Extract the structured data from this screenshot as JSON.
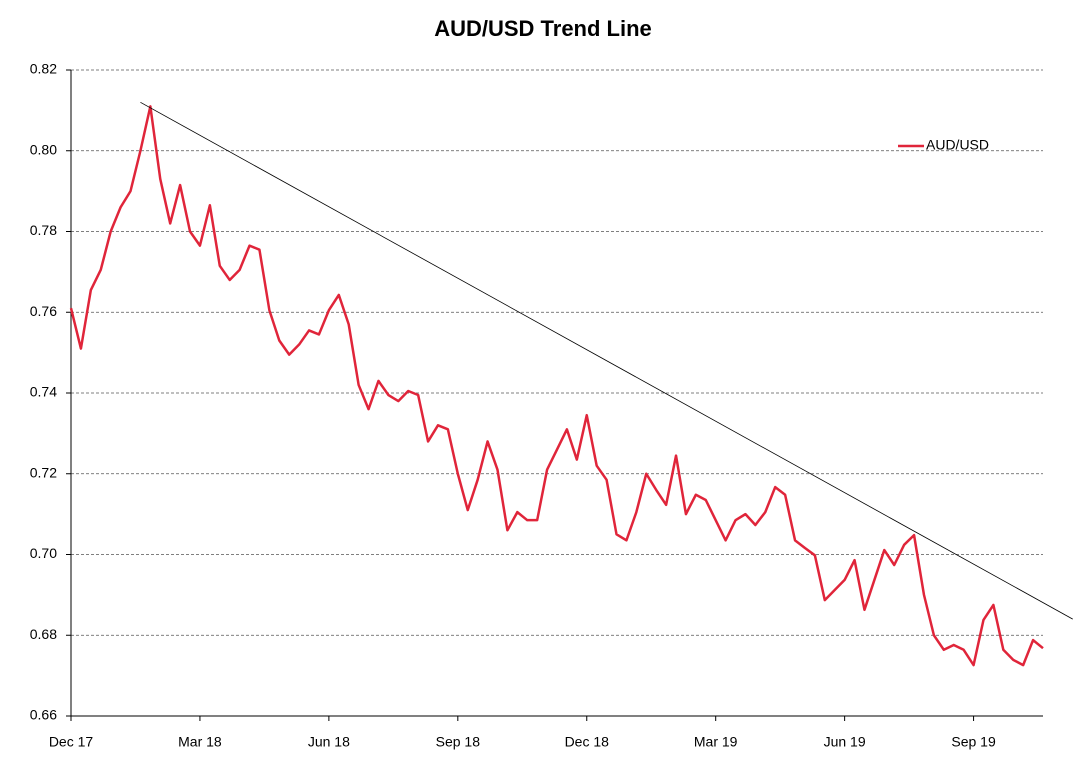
{
  "chart_data": {
    "type": "line",
    "title": "AUD/USD Trend Line",
    "categories": [
      "Dec 17",
      null,
      null,
      null,
      null,
      null,
      null,
      null,
      null,
      null,
      null,
      null,
      null,
      "Mar 18",
      null,
      null,
      null,
      null,
      null,
      null,
      null,
      null,
      null,
      null,
      null,
      null,
      "Jun 18",
      null,
      null,
      null,
      null,
      null,
      null,
      null,
      null,
      null,
      null,
      null,
      null,
      "Sep 18",
      null,
      null,
      null,
      null,
      null,
      null,
      null,
      null,
      null,
      null,
      null,
      null,
      "Dec 18",
      null,
      null,
      null,
      null,
      null,
      null,
      null,
      null,
      null,
      null,
      null,
      null,
      "Mar 19",
      null,
      null,
      null,
      null,
      null,
      null,
      null,
      null,
      null,
      null,
      null,
      null,
      "Jun 19",
      null,
      null,
      null,
      null,
      null,
      null,
      null,
      null,
      null,
      null,
      null,
      null,
      "Sep 19",
      null,
      null,
      null,
      null,
      null,
      null,
      null
    ],
    "series": [
      {
        "name": "AUD/USD",
        "color": "#e0253a",
        "values": [
          0.761,
          0.751,
          0.7655,
          0.7705,
          0.78,
          0.786,
          0.79,
          0.8,
          0.811,
          0.793,
          0.782,
          0.7915,
          0.78,
          0.7765,
          0.7865,
          0.7715,
          0.768,
          0.7705,
          0.7765,
          0.7755,
          0.7605,
          0.753,
          0.7495,
          0.752,
          0.7555,
          0.7545,
          0.7605,
          0.7643,
          0.757,
          0.742,
          0.736,
          0.743,
          0.7395,
          0.738,
          0.7405,
          0.7395,
          0.728,
          0.732,
          0.731,
          0.72,
          0.711,
          0.7185,
          0.728,
          0.721,
          0.706,
          0.7105,
          0.7085,
          0.7085,
          0.721,
          0.726,
          0.731,
          0.7235,
          0.7345,
          0.722,
          0.7185,
          0.705,
          0.7035,
          0.7105,
          0.72,
          0.716,
          0.7123,
          0.7245,
          0.71,
          0.7148,
          0.7135,
          0.7085,
          0.7035,
          0.7085,
          0.71,
          0.7073,
          0.7105,
          0.7167,
          0.7148,
          0.7035,
          0.7016,
          0.6998,
          0.6887,
          0.6912,
          0.6937,
          0.6986,
          0.6863,
          0.6937,
          0.7011,
          0.6974,
          0.7024,
          0.7048,
          0.69,
          0.68,
          0.6764,
          0.6776,
          0.6764,
          0.6726,
          0.6838,
          0.6875,
          0.6764,
          0.6739,
          0.6726,
          0.6788,
          0.6768
        ]
      }
    ],
    "trend_line": {
      "x": [
        7,
        101
      ],
      "values": [
        0.812,
        0.684
      ],
      "color": "#000000"
    },
    "ylim": [
      0.66,
      0.82
    ],
    "yticks": [
      0.66,
      0.68,
      {
        "value": 0.7,
        "label": "0.70"
      },
      0.72,
      0.74,
      0.76,
      0.78,
      {
        "value": 0.8,
        "label": "0.80"
      },
      0.82
    ],
    "grid": true,
    "legend": "upper right"
  }
}
